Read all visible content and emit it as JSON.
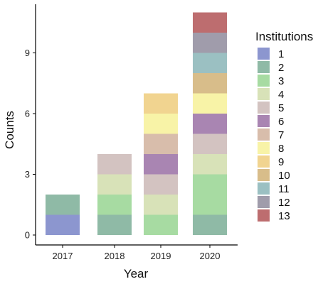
{
  "chart_data": {
    "type": "bar",
    "stacked": true,
    "categories": [
      "2017",
      "2018",
      "2019",
      "2020"
    ],
    "xlabel": "Year",
    "ylabel": "Counts",
    "ylim": [
      0,
      11.5
    ],
    "yticks": [
      0,
      3,
      6,
      9
    ],
    "grid": false,
    "legend": {
      "title": "Institutions",
      "position": "right"
    },
    "series": [
      {
        "name": "1",
        "color": "#8c96cf",
        "values": [
          1,
          0,
          0,
          0
        ]
      },
      {
        "name": "2",
        "color": "#8fbaa6",
        "values": [
          1,
          1,
          0,
          1
        ]
      },
      {
        "name": "3",
        "color": "#a7dba2",
        "values": [
          0,
          1,
          1,
          2
        ]
      },
      {
        "name": "4",
        "color": "#d8e2b8",
        "values": [
          0,
          1,
          1,
          1
        ]
      },
      {
        "name": "5",
        "color": "#d3c3c1",
        "values": [
          0,
          1,
          1,
          1
        ]
      },
      {
        "name": "6",
        "color": "#a985b2",
        "values": [
          0,
          0,
          1,
          1
        ]
      },
      {
        "name": "7",
        "color": "#d8bdab",
        "values": [
          0,
          0,
          1,
          0
        ]
      },
      {
        "name": "8",
        "color": "#f8f3a7",
        "values": [
          0,
          0,
          1,
          1
        ]
      },
      {
        "name": "9",
        "color": "#f1d490",
        "values": [
          0,
          0,
          1,
          0
        ]
      },
      {
        "name": "10",
        "color": "#d8bd8a",
        "values": [
          0,
          0,
          0,
          1
        ]
      },
      {
        "name": "11",
        "color": "#9bc0c2",
        "values": [
          0,
          0,
          0,
          1
        ]
      },
      {
        "name": "12",
        "color": "#a09cab",
        "values": [
          0,
          0,
          0,
          1
        ]
      },
      {
        "name": "13",
        "color": "#bd6d6f",
        "values": [
          0,
          0,
          0,
          1
        ]
      }
    ]
  }
}
